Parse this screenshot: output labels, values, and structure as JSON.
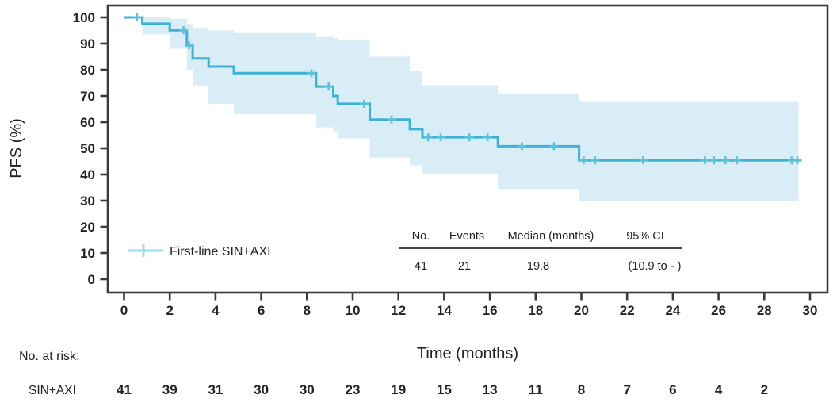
{
  "chart_data": {
    "type": "line",
    "subtype": "kaplan-meier-step",
    "title": "",
    "xlabel": "Time (months)",
    "ylabel": "PFS (%)",
    "xlim": [
      0,
      30
    ],
    "ylim": [
      0,
      100
    ],
    "xticks": [
      0,
      2,
      4,
      6,
      8,
      10,
      12,
      14,
      16,
      18,
      20,
      22,
      24,
      26,
      28,
      30
    ],
    "yticks": [
      0,
      10,
      20,
      30,
      40,
      50,
      60,
      70,
      80,
      90,
      100
    ],
    "grid": false,
    "legend_position": "lower-left-inside",
    "series": [
      {
        "name": "First-line SIN+AXI",
        "color": "#3eb2d4",
        "censor_color": "#5ac2de",
        "legend_sample_color": "#9edcef",
        "band_color": "#d9edf6",
        "steps": [
          [
            0,
            100
          ],
          [
            0.8,
            97.6
          ],
          [
            2.0,
            95.1
          ],
          [
            2.75,
            89.3
          ],
          [
            3.0,
            84.3
          ],
          [
            3.7,
            81.2
          ],
          [
            4.8,
            78.7
          ],
          [
            8.4,
            73.6
          ],
          [
            9.15,
            70.0
          ],
          [
            9.35,
            67.0
          ],
          [
            10.75,
            61.0
          ],
          [
            12.5,
            57.3
          ],
          [
            13.05,
            54.2
          ],
          [
            16.35,
            50.8
          ],
          [
            19.9,
            45.4
          ]
        ],
        "end_time": 29.6,
        "censors": [
          [
            0.56,
            100
          ],
          [
            2.6,
            95.1
          ],
          [
            2.85,
            89.3
          ],
          [
            8.2,
            78.7
          ],
          [
            8.95,
            73.6
          ],
          [
            10.5,
            67.0
          ],
          [
            11.7,
            61.0
          ],
          [
            13.3,
            54.2
          ],
          [
            13.85,
            54.2
          ],
          [
            15.1,
            54.2
          ],
          [
            15.9,
            54.2
          ],
          [
            17.4,
            50.8
          ],
          [
            18.8,
            50.8
          ],
          [
            20.1,
            45.4
          ],
          [
            20.6,
            45.4
          ],
          [
            22.7,
            45.4
          ],
          [
            25.4,
            45.4
          ],
          [
            25.8,
            45.4
          ],
          [
            26.3,
            45.4
          ],
          [
            26.8,
            45.4
          ],
          [
            29.2,
            45.4
          ],
          [
            29.45,
            45.4
          ]
        ],
        "ci_upper": [
          [
            0.8,
            100
          ],
          [
            2.0,
            99.5
          ],
          [
            2.75,
            97.5
          ],
          [
            3.0,
            96.0
          ],
          [
            3.7,
            95.0
          ],
          [
            4.8,
            94.3
          ],
          [
            8.4,
            92.5
          ],
          [
            9.15,
            92.0
          ],
          [
            9.35,
            91.3
          ],
          [
            10.75,
            85.0
          ],
          [
            12.5,
            79.7
          ],
          [
            13.05,
            74.1
          ],
          [
            16.35,
            71.0
          ],
          [
            19.9,
            68.0
          ]
        ],
        "ci_lower": [
          [
            0.8,
            93.5
          ],
          [
            2.0,
            88.0
          ],
          [
            2.75,
            80.0
          ],
          [
            3.0,
            74.0
          ],
          [
            3.7,
            67.0
          ],
          [
            4.8,
            63.0
          ],
          [
            8.4,
            58.0
          ],
          [
            9.15,
            56.0
          ],
          [
            9.35,
            53.8
          ],
          [
            10.75,
            46.5
          ],
          [
            12.5,
            43.5
          ],
          [
            13.05,
            40.0
          ],
          [
            16.35,
            34.5
          ],
          [
            19.9,
            30.0
          ]
        ],
        "ci_end_time": 29.5
      }
    ],
    "stats_table": {
      "headers": [
        "No.",
        "Events",
        "Median (months)",
        "95% CI"
      ],
      "rows": [
        [
          "41",
          "21",
          "19.8",
          "(10.9 to - )"
        ]
      ]
    },
    "risk_table": {
      "label": "No. at risk:",
      "row_label": "SIN+AXI",
      "times": [
        0,
        2,
        4,
        6,
        8,
        10,
        12,
        14,
        16,
        18,
        20,
        22,
        24,
        26,
        28
      ],
      "values": [
        41,
        39,
        31,
        30,
        30,
        23,
        19,
        15,
        13,
        11,
        8,
        7,
        6,
        4,
        2
      ]
    },
    "colors": {
      "axis": "#3a3a3a",
      "text": "#222222"
    }
  }
}
